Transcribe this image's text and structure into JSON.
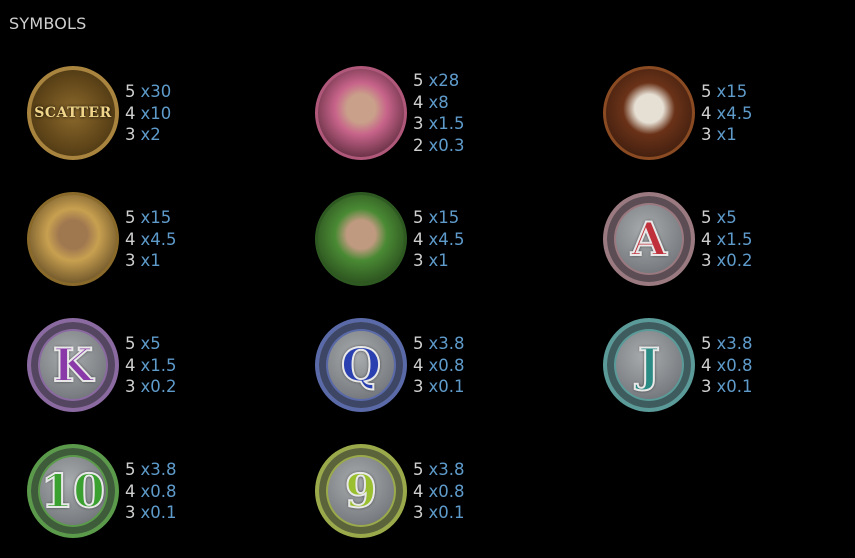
{
  "title": "SYMBOLS",
  "colors": {
    "count": "#cfcfcf",
    "multiplier": "#5e9bcb",
    "background": "#000000"
  },
  "symbols": [
    {
      "name": "scatter",
      "type": "scatter",
      "label": "SCATTER",
      "pays": [
        {
          "count": "5",
          "mult": "x30"
        },
        {
          "count": "4",
          "mult": "x10"
        },
        {
          "count": "3",
          "mult": "x2"
        }
      ]
    },
    {
      "name": "woman-pink",
      "type": "portrait",
      "rim": "#b0587a",
      "bg": "#c8648a",
      "bg2": "#2a1018",
      "skin": "#c9a08a",
      "pays": [
        {
          "count": "5",
          "mult": "x28"
        },
        {
          "count": "4",
          "mult": "x8"
        },
        {
          "count": "3",
          "mult": "x1.5"
        },
        {
          "count": "2",
          "mult": "x0.3"
        }
      ]
    },
    {
      "name": "red-beard-pirate",
      "type": "portrait",
      "rim": "#8a4a22",
      "bg": "#6a3218",
      "bg2": "#2a140a",
      "skin": "#e6e0d4",
      "pays": [
        {
          "count": "5",
          "mult": "x15"
        },
        {
          "count": "4",
          "mult": "x4.5"
        },
        {
          "count": "3",
          "mult": "x1"
        }
      ]
    },
    {
      "name": "pirate-captain",
      "type": "portrait",
      "rim": "#8a6a2a",
      "bg": "#c8a050",
      "bg2": "#3a2a14",
      "skin": "#a07850",
      "pays": [
        {
          "count": "5",
          "mult": "x15"
        },
        {
          "count": "4",
          "mult": "x4.5"
        },
        {
          "count": "3",
          "mult": "x1"
        }
      ]
    },
    {
      "name": "woman-green",
      "type": "portrait",
      "rim": "#2e5a22",
      "bg": "#4a8a34",
      "bg2": "#1a3012",
      "skin": "#c09a80",
      "pays": [
        {
          "count": "5",
          "mult": "x15"
        },
        {
          "count": "4",
          "mult": "x4.5"
        },
        {
          "count": "3",
          "mult": "x1"
        }
      ]
    },
    {
      "name": "ace",
      "type": "card",
      "label": "A",
      "rim": "#9a7a80",
      "fill": "#c0303a",
      "pays": [
        {
          "count": "5",
          "mult": "x5"
        },
        {
          "count": "4",
          "mult": "x1.5"
        },
        {
          "count": "3",
          "mult": "x0.2"
        }
      ]
    },
    {
      "name": "king",
      "type": "card",
      "label": "K",
      "rim": "#8a6aa0",
      "fill": "#8a3aa8",
      "pays": [
        {
          "count": "5",
          "mult": "x5"
        },
        {
          "count": "4",
          "mult": "x1.5"
        },
        {
          "count": "3",
          "mult": "x0.2"
        }
      ]
    },
    {
      "name": "queen",
      "type": "card",
      "label": "Q",
      "rim": "#5a6aa8",
      "fill": "#2a40b0",
      "pays": [
        {
          "count": "5",
          "mult": "x3.8"
        },
        {
          "count": "4",
          "mult": "x0.8"
        },
        {
          "count": "3",
          "mult": "x0.1"
        }
      ]
    },
    {
      "name": "jack",
      "type": "card",
      "label": "J",
      "rim": "#5a9a98",
      "fill": "#2a8a84",
      "pays": [
        {
          "count": "5",
          "mult": "x3.8"
        },
        {
          "count": "4",
          "mult": "x0.8"
        },
        {
          "count": "3",
          "mult": "x0.1"
        }
      ]
    },
    {
      "name": "ten",
      "type": "card",
      "label": "10",
      "rim": "#5a9a4a",
      "fill": "#3aa030",
      "pays": [
        {
          "count": "5",
          "mult": "x3.8"
        },
        {
          "count": "4",
          "mult": "x0.8"
        },
        {
          "count": "3",
          "mult": "x0.1"
        }
      ]
    },
    {
      "name": "nine",
      "type": "card",
      "label": "9",
      "rim": "#9aaa4a",
      "fill": "#9ac030",
      "pays": [
        {
          "count": "5",
          "mult": "x3.8"
        },
        {
          "count": "4",
          "mult": "x0.8"
        },
        {
          "count": "3",
          "mult": "x0.1"
        }
      ]
    }
  ]
}
